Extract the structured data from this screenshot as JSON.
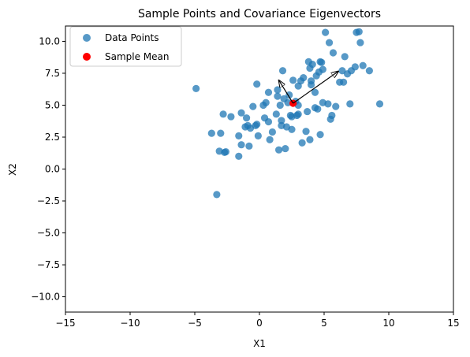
{
  "chart_data": {
    "type": "scatter",
    "title": "Sample Points and Covariance Eigenvectors",
    "xlabel": "X1",
    "ylabel": "X2",
    "xlim": [
      -15,
      15
    ],
    "ylim": [
      -11.2,
      11.2
    ],
    "xticks": [
      -15,
      -10,
      -5,
      0,
      5,
      10,
      15
    ],
    "xtick_labels": [
      "−15",
      "−10",
      "−5",
      "0",
      "5",
      "10",
      "15"
    ],
    "yticks": [
      -10.0,
      -7.5,
      -5.0,
      -2.5,
      0.0,
      2.5,
      5.0,
      7.5,
      10.0
    ],
    "ytick_labels": [
      "−10.0",
      "−7.5",
      "−5.0",
      "−2.5",
      "0.0",
      "2.5",
      "5.0",
      "7.5",
      "10.0"
    ],
    "grid": false,
    "legend_position": "top-left",
    "legend": [
      "Data Points",
      "Sample Mean"
    ],
    "colors": {
      "points": "#1f77b4",
      "mean": "#ff0000",
      "arrow": "#000000"
    },
    "series": [
      {
        "name": "Data Points",
        "points": [
          [
            -4.9,
            6.3
          ],
          [
            -3.3,
            -2.0
          ],
          [
            -3.7,
            2.8
          ],
          [
            -3.0,
            2.8
          ],
          [
            -3.1,
            1.4
          ],
          [
            -2.8,
            4.3
          ],
          [
            -2.6,
            1.35
          ],
          [
            -2.7,
            1.3
          ],
          [
            -2.2,
            4.1
          ],
          [
            -1.6,
            1.0
          ],
          [
            -1.6,
            2.6
          ],
          [
            -1.4,
            1.9
          ],
          [
            -1.4,
            4.4
          ],
          [
            -1.1,
            3.3
          ],
          [
            -1.0,
            4.0
          ],
          [
            -0.9,
            3.4
          ],
          [
            -0.8,
            1.8
          ],
          [
            -0.7,
            3.2
          ],
          [
            -0.5,
            4.9
          ],
          [
            -0.3,
            3.4
          ],
          [
            -0.2,
            3.5
          ],
          [
            -0.1,
            2.6
          ],
          [
            -0.2,
            6.65
          ],
          [
            0.3,
            5.0
          ],
          [
            0.4,
            4.0
          ],
          [
            0.5,
            5.2
          ],
          [
            0.7,
            3.7
          ],
          [
            0.8,
            2.3
          ],
          [
            0.7,
            6.0
          ],
          [
            1.0,
            2.9
          ],
          [
            1.3,
            4.3
          ],
          [
            1.4,
            5.7
          ],
          [
            1.4,
            6.2
          ],
          [
            1.5,
            1.5
          ],
          [
            1.6,
            5.0
          ],
          [
            1.7,
            3.4
          ],
          [
            1.7,
            3.8
          ],
          [
            1.8,
            7.7
          ],
          [
            1.9,
            5.5
          ],
          [
            2.0,
            1.6
          ],
          [
            2.1,
            3.3
          ],
          [
            2.2,
            5.2
          ],
          [
            2.3,
            5.8
          ],
          [
            2.4,
            4.2
          ],
          [
            2.5,
            3.1
          ],
          [
            2.5,
            4.1
          ],
          [
            2.6,
            6.95
          ],
          [
            2.8,
            5.3
          ],
          [
            2.9,
            4.2
          ],
          [
            3.0,
            5.0
          ],
          [
            3.0,
            6.5
          ],
          [
            3.0,
            4.3
          ],
          [
            3.2,
            6.9
          ],
          [
            3.3,
            2.05
          ],
          [
            3.4,
            7.15
          ],
          [
            3.6,
            2.95
          ],
          [
            3.7,
            4.5
          ],
          [
            3.8,
            8.4
          ],
          [
            3.9,
            2.3
          ],
          [
            3.9,
            7.9
          ],
          [
            4.0,
            6.6
          ],
          [
            4.0,
            6.9
          ],
          [
            4.1,
            8.2
          ],
          [
            4.3,
            4.8
          ],
          [
            4.3,
            6.0
          ],
          [
            4.4,
            7.3
          ],
          [
            4.5,
            4.7
          ],
          [
            4.6,
            7.6
          ],
          [
            4.7,
            8.4
          ],
          [
            4.8,
            8.35
          ],
          [
            4.9,
            5.2
          ],
          [
            4.9,
            7.8
          ],
          [
            4.7,
            2.7
          ],
          [
            5.1,
            10.7
          ],
          [
            5.3,
            5.1
          ],
          [
            5.4,
            9.9
          ],
          [
            5.5,
            3.9
          ],
          [
            5.6,
            4.2
          ],
          [
            5.7,
            9.1
          ],
          [
            5.9,
            4.9
          ],
          [
            6.2,
            6.8
          ],
          [
            6.4,
            7.7
          ],
          [
            6.5,
            6.8
          ],
          [
            6.6,
            8.8
          ],
          [
            6.8,
            7.45
          ],
          [
            7.0,
            5.1
          ],
          [
            7.1,
            7.7
          ],
          [
            7.4,
            8.0
          ],
          [
            7.5,
            10.7
          ],
          [
            7.7,
            10.75
          ],
          [
            7.8,
            9.9
          ],
          [
            8.0,
            8.1
          ],
          [
            8.5,
            7.7
          ],
          [
            9.3,
            5.1
          ]
        ]
      },
      {
        "name": "Sample Mean",
        "points": [
          [
            2.6,
            5.15
          ]
        ]
      }
    ],
    "arrows": [
      {
        "from": [
          2.6,
          5.15
        ],
        "to": [
          6.1,
          7.65
        ]
      },
      {
        "from": [
          2.6,
          5.15
        ],
        "to": [
          1.5,
          6.95
        ]
      }
    ]
  }
}
